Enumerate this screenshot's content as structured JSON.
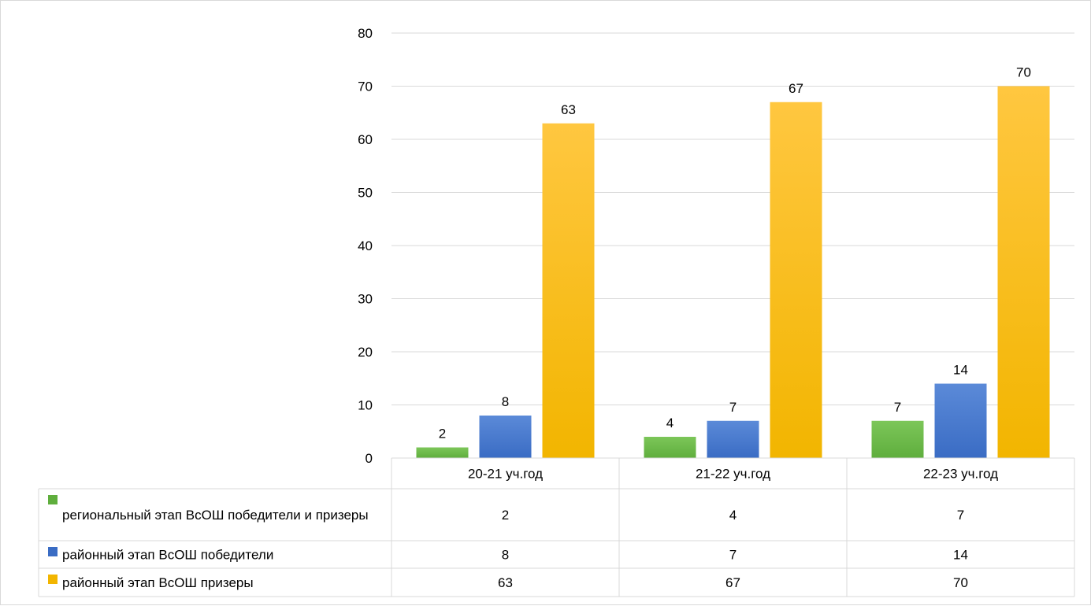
{
  "chart_data": {
    "type": "bar",
    "categories": [
      "20-21 уч.год",
      "21-22 уч.год",
      "22-23 уч.год"
    ],
    "series": [
      {
        "name": "региональный этап ВсОШ победители и призеры",
        "values": [
          2,
          4,
          7
        ],
        "color": "#5fae3d",
        "color_light": "#7cc659"
      },
      {
        "name": "районный этап ВсОШ  победители",
        "values": [
          8,
          7,
          14
        ],
        "color": "#3a6cc4",
        "color_light": "#5b8ad8"
      },
      {
        "name": "районный этап ВсОШ  призеры",
        "values": [
          63,
          67,
          70
        ],
        "color": "#f2b500",
        "color_light": "#ffc740"
      }
    ],
    "title": "",
    "xlabel": "",
    "ylabel": "",
    "ylim": [
      0,
      80
    ],
    "yticks": [
      "0",
      "10",
      "20",
      "30",
      "40",
      "50",
      "60",
      "70",
      "80"
    ],
    "grid": true,
    "data_labels": true,
    "legend": "data-table"
  }
}
